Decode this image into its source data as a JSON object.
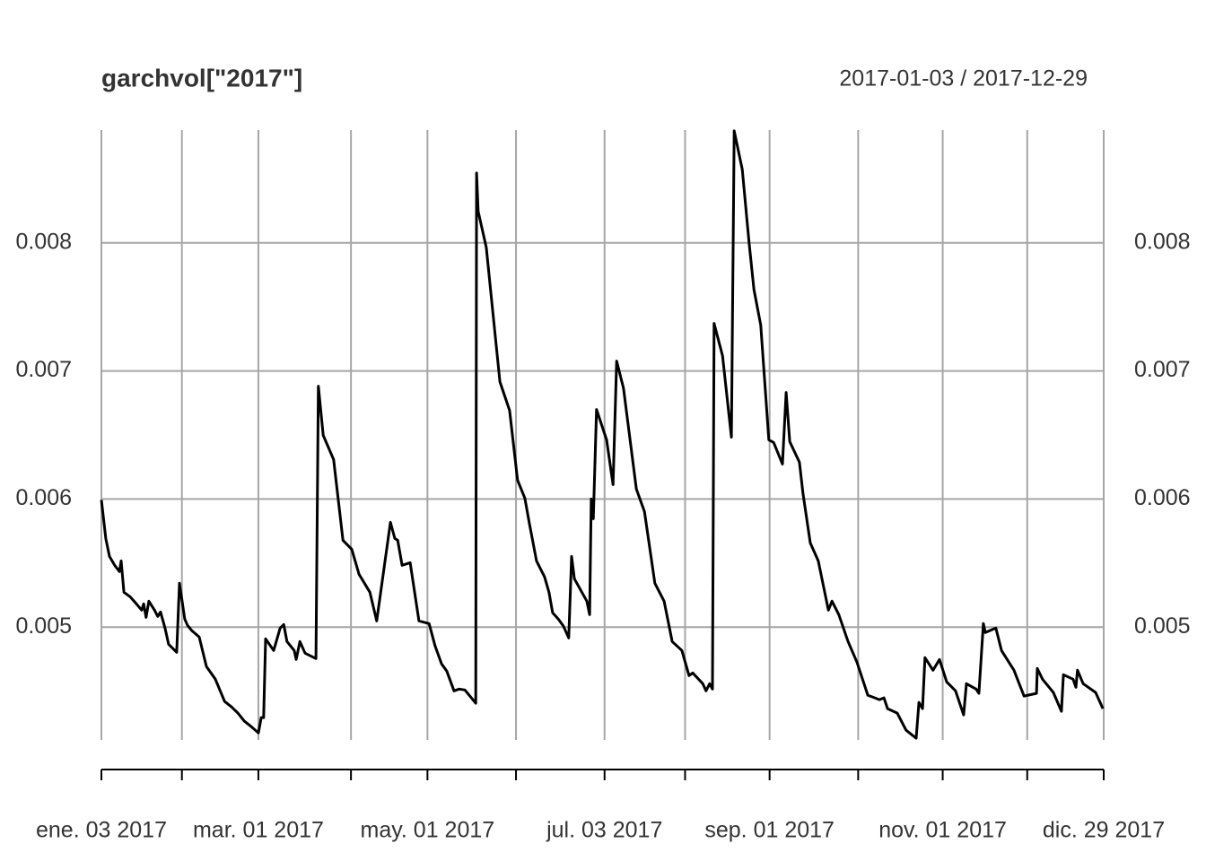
{
  "chart_data": {
    "type": "line",
    "title": "garchvol[\"2017\"]",
    "subtitle": "2017-01-03 / 2017-12-29",
    "color": "#000000",
    "grid": true,
    "xlim": [
      0,
      249
    ],
    "ylim": [
      0.00412,
      0.00888
    ],
    "yticks": [
      0.005,
      0.006,
      0.007,
      0.008
    ],
    "xticks": [
      {
        "value": 0,
        "label": "ene. 03 2017"
      },
      {
        "value": 39,
        "label": "mar. 01 2017"
      },
      {
        "value": 81,
        "label": "may. 01 2017"
      },
      {
        "value": 125,
        "label": "jul. 03 2017"
      },
      {
        "value": 166,
        "label": "sep. 01 2017"
      },
      {
        "value": 209,
        "label": "nov. 01 2017"
      },
      {
        "value": 249,
        "label": "dic. 29 2017"
      }
    ],
    "xgrid": [
      0,
      20,
      39,
      62,
      81,
      103,
      125,
      145,
      166,
      188,
      209,
      230,
      249
    ],
    "x": [
      0.0,
      1.1,
      2.0,
      3.3,
      4.5,
      4.9,
      5.6,
      7.1,
      8.7,
      10.0,
      10.5,
      11.1,
      11.8,
      13.2,
      14.0,
      14.7,
      15.8,
      16.7,
      18.7,
      19.4,
      20.7,
      21.4,
      22.5,
      24.3,
      26.1,
      28.3,
      30.6,
      32.3,
      33.9,
      35.5,
      37.2,
      39.0,
      39.7,
      40.3,
      40.8,
      42.8,
      44.4,
      45.3,
      46.1,
      47.9,
      48.4,
      49.3,
      50.6,
      53.3,
      53.9,
      55.1,
      57.7,
      60.0,
      62.2,
      64.0,
      65.1,
      66.7,
      68.4,
      71.8,
      72.9,
      73.6,
      74.7,
      76.7,
      78.9,
      81.4,
      82.9,
      84.5,
      85.8,
      87.6,
      88.9,
      90.3,
      93.0,
      93.2,
      93.6,
      95.6,
      99.0,
      101.4,
      103.4,
      105.2,
      106.3,
      108.1,
      110.1,
      111.2,
      112.1,
      113.5,
      114.8,
      116.1,
      116.8,
      117.5,
      120.6,
      121.3,
      121.7,
      122.2,
      123.0,
      125.5,
      127.1,
      128.0,
      129.7,
      132.9,
      134.9,
      137.5,
      139.8,
      141.8,
      144.2,
      146.0,
      146.9,
      149.4,
      150.2,
      151.1,
      151.8,
      152.2,
      154.3,
      156.5,
      157.2,
      159.2,
      160.9,
      162.1,
      163.8,
      165.8,
      167.0,
      169.2,
      170.1,
      171.0,
      173.4,
      174.3,
      176.1,
      178.1,
      180.6,
      181.5,
      183.2,
      185.5,
      187.7,
      190.4,
      193.3,
      194.4,
      195.3,
      197.7,
      199.9,
      202.4,
      203.1,
      204.0,
      204.6,
      206.6,
      208.2,
      210.0,
      212.2,
      214.2,
      214.9,
      217.3,
      218.0,
      219.1,
      219.6,
      222.2,
      223.6,
      226.7,
      229.2,
      232.3,
      232.5,
      233.8,
      236.5,
      238.5,
      239.0,
      241.4,
      242.1,
      242.5,
      243.9,
      247.0,
      248.8
    ],
    "values": [
      0.005993,
      0.005692,
      0.005552,
      0.005483,
      0.005434,
      0.005517,
      0.005273,
      0.005238,
      0.005182,
      0.005133,
      0.005182,
      0.005077,
      0.005203,
      0.005133,
      0.005084,
      0.005119,
      0.004993,
      0.004867,
      0.004804,
      0.005343,
      0.005063,
      0.005014,
      0.004972,
      0.004923,
      0.004692,
      0.004594,
      0.00442,
      0.004378,
      0.004329,
      0.004266,
      0.004224,
      0.004175,
      0.004294,
      0.004294,
      0.004909,
      0.004818,
      0.004993,
      0.005021,
      0.004888,
      0.004818,
      0.004748,
      0.004888,
      0.004797,
      0.004755,
      0.006881,
      0.006497,
      0.006308,
      0.005678,
      0.005608,
      0.005413,
      0.005357,
      0.005273,
      0.005049,
      0.005818,
      0.005692,
      0.005678,
      0.005483,
      0.005503,
      0.005049,
      0.005028,
      0.004853,
      0.004713,
      0.004657,
      0.004503,
      0.004517,
      0.00451,
      0.004406,
      0.008545,
      0.008245,
      0.007965,
      0.006916,
      0.006692,
      0.006147,
      0.006007,
      0.005811,
      0.005517,
      0.005392,
      0.005273,
      0.005112,
      0.005063,
      0.005007,
      0.004916,
      0.005552,
      0.005378,
      0.005203,
      0.005098,
      0.006,
      0.005846,
      0.006699,
      0.006462,
      0.006112,
      0.007077,
      0.006867,
      0.006077,
      0.005902,
      0.005343,
      0.005203,
      0.004888,
      0.004818,
      0.004622,
      0.004643,
      0.004559,
      0.004503,
      0.004559,
      0.004517,
      0.007371,
      0.007119,
      0.006483,
      0.008874,
      0.008573,
      0.008,
      0.007636,
      0.007357,
      0.006462,
      0.006441,
      0.006273,
      0.006832,
      0.006448,
      0.006287,
      0.006042,
      0.005657,
      0.005517,
      0.005133,
      0.005203,
      0.005098,
      0.004888,
      0.004727,
      0.004469,
      0.004434,
      0.004448,
      0.004364,
      0.004329,
      0.004196,
      0.004133,
      0.004413,
      0.004364,
      0.004762,
      0.004664,
      0.004748,
      0.004573,
      0.004503,
      0.004315,
      0.004559,
      0.004517,
      0.004483,
      0.005028,
      0.004958,
      0.004993,
      0.004818,
      0.004664,
      0.004462,
      0.004483,
      0.004678,
      0.004594,
      0.00449,
      0.004343,
      0.004629,
      0.004594,
      0.004531,
      0.004664,
      0.004559,
      0.00449,
      0.004364
    ]
  }
}
